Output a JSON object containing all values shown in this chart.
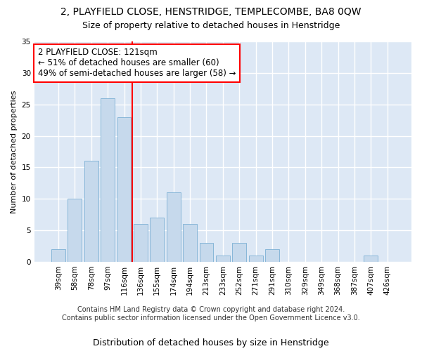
{
  "title": "2, PLAYFIELD CLOSE, HENSTRIDGE, TEMPLECOMBE, BA8 0QW",
  "subtitle": "Size of property relative to detached houses in Henstridge",
  "xlabel": "Distribution of detached houses by size in Henstridge",
  "ylabel": "Number of detached properties",
  "categories": [
    "39sqm",
    "58sqm",
    "78sqm",
    "97sqm",
    "116sqm",
    "136sqm",
    "155sqm",
    "174sqm",
    "194sqm",
    "213sqm",
    "233sqm",
    "252sqm",
    "271sqm",
    "291sqm",
    "310sqm",
    "329sqm",
    "349sqm",
    "368sqm",
    "387sqm",
    "407sqm",
    "426sqm"
  ],
  "values": [
    2,
    10,
    16,
    26,
    23,
    6,
    7,
    11,
    6,
    3,
    1,
    3,
    1,
    2,
    0,
    0,
    0,
    0,
    0,
    1,
    0
  ],
  "bar_color": "#c6d9ec",
  "bar_edgecolor": "#7bafd4",
  "vline_x": 4.5,
  "vline_color": "red",
  "annotation_text": "2 PLAYFIELD CLOSE: 121sqm\n← 51% of detached houses are smaller (60)\n49% of semi-detached houses are larger (58) →",
  "annotation_box_color": "white",
  "annotation_box_edgecolor": "red",
  "ylim": [
    0,
    35
  ],
  "yticks": [
    0,
    5,
    10,
    15,
    20,
    25,
    30,
    35
  ],
  "background_color": "#dde8f5",
  "grid_color": "white",
  "footer": "Contains HM Land Registry data © Crown copyright and database right 2024.\nContains public sector information licensed under the Open Government Licence v3.0.",
  "title_fontsize": 10,
  "subtitle_fontsize": 9,
  "xlabel_fontsize": 9,
  "ylabel_fontsize": 8,
  "tick_fontsize": 7.5,
  "annotation_fontsize": 8.5,
  "footer_fontsize": 7
}
